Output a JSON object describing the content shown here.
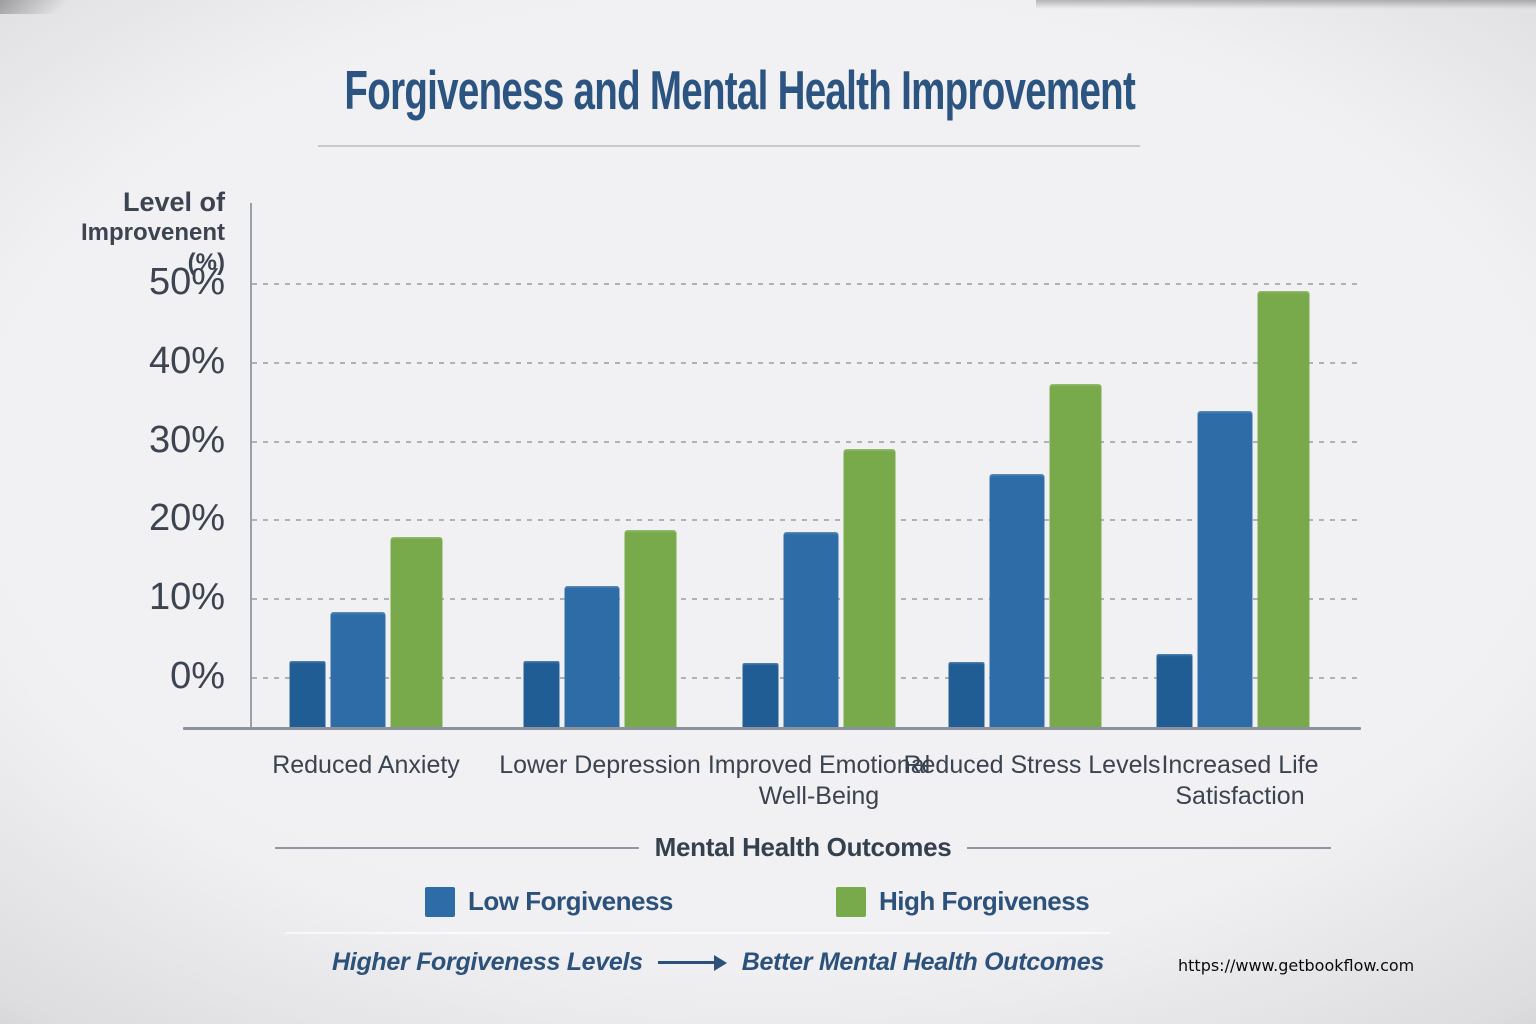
{
  "title": "Forgiveness and Mental Health Improvement",
  "y_axis_label": {
    "line1": "Level of",
    "line2": "Improvenent (%)"
  },
  "x_axis_title": "Mental Health Outcomes",
  "legend": {
    "low_label": "Low Forgiveness",
    "high_label": "High Forgiveness"
  },
  "footnote": {
    "left_text": "Higher Forgiveness Levels",
    "right_text": "Better Mental Health Outcomes"
  },
  "watermark": "https://www.getbookflow.com",
  "colors": {
    "background": "#efeef0",
    "title_blue": "#2c5480",
    "axis_text": "#3b4450",
    "low_forgiveness_blue": "#2e6ca8",
    "high_forgiveness_green": "#78a94a",
    "stub_bar_blue": "#1f5d94",
    "gridline": "#aeb1b8",
    "axis_line": "#8b929d"
  },
  "chart_data": {
    "type": "bar",
    "title": "Forgiveness and Mental Health Improvement",
    "xlabel": "Mental Health Outcomes",
    "ylabel": "Level of Improvenent (%)",
    "categories": [
      "Reduced Anxiety",
      "Lower Depression",
      "Improved Emotional Well-Being",
      "Reduced Stress Levels",
      "Increased Life Satisfaction"
    ],
    "series": [
      {
        "name": "Low Forgiveness",
        "color": "#2e6ca8",
        "values": [
          8.0,
          11.3,
          18.1,
          25.5,
          33.5
        ]
      },
      {
        "name": "High Forgiveness",
        "color": "#78a94a",
        "values": [
          17.5,
          18.4,
          28.7,
          36.9,
          48.7
        ]
      }
    ],
    "baseline_stub_bars": {
      "color": "#1f5d94",
      "values": [
        1.8,
        1.8,
        1.5,
        1.7,
        2.7
      ],
      "note": "small unlabeled dark-blue bar at the left of each group"
    },
    "y_ticks": [
      {
        "label": "50%",
        "value": 50
      },
      {
        "label": "40%",
        "value": 40
      },
      {
        "label": "30%",
        "value": 30
      },
      {
        "label": "20%",
        "value": 20
      },
      {
        "label": "10%",
        "value": 10
      },
      {
        "label": "0%",
        "value": 0
      }
    ],
    "ylim": [
      0,
      55
    ],
    "grid": "horizontal dashed",
    "legend_position": "bottom",
    "annotation": "Higher Forgiveness Levels ⟶ Better Mental Health Outcomes"
  }
}
